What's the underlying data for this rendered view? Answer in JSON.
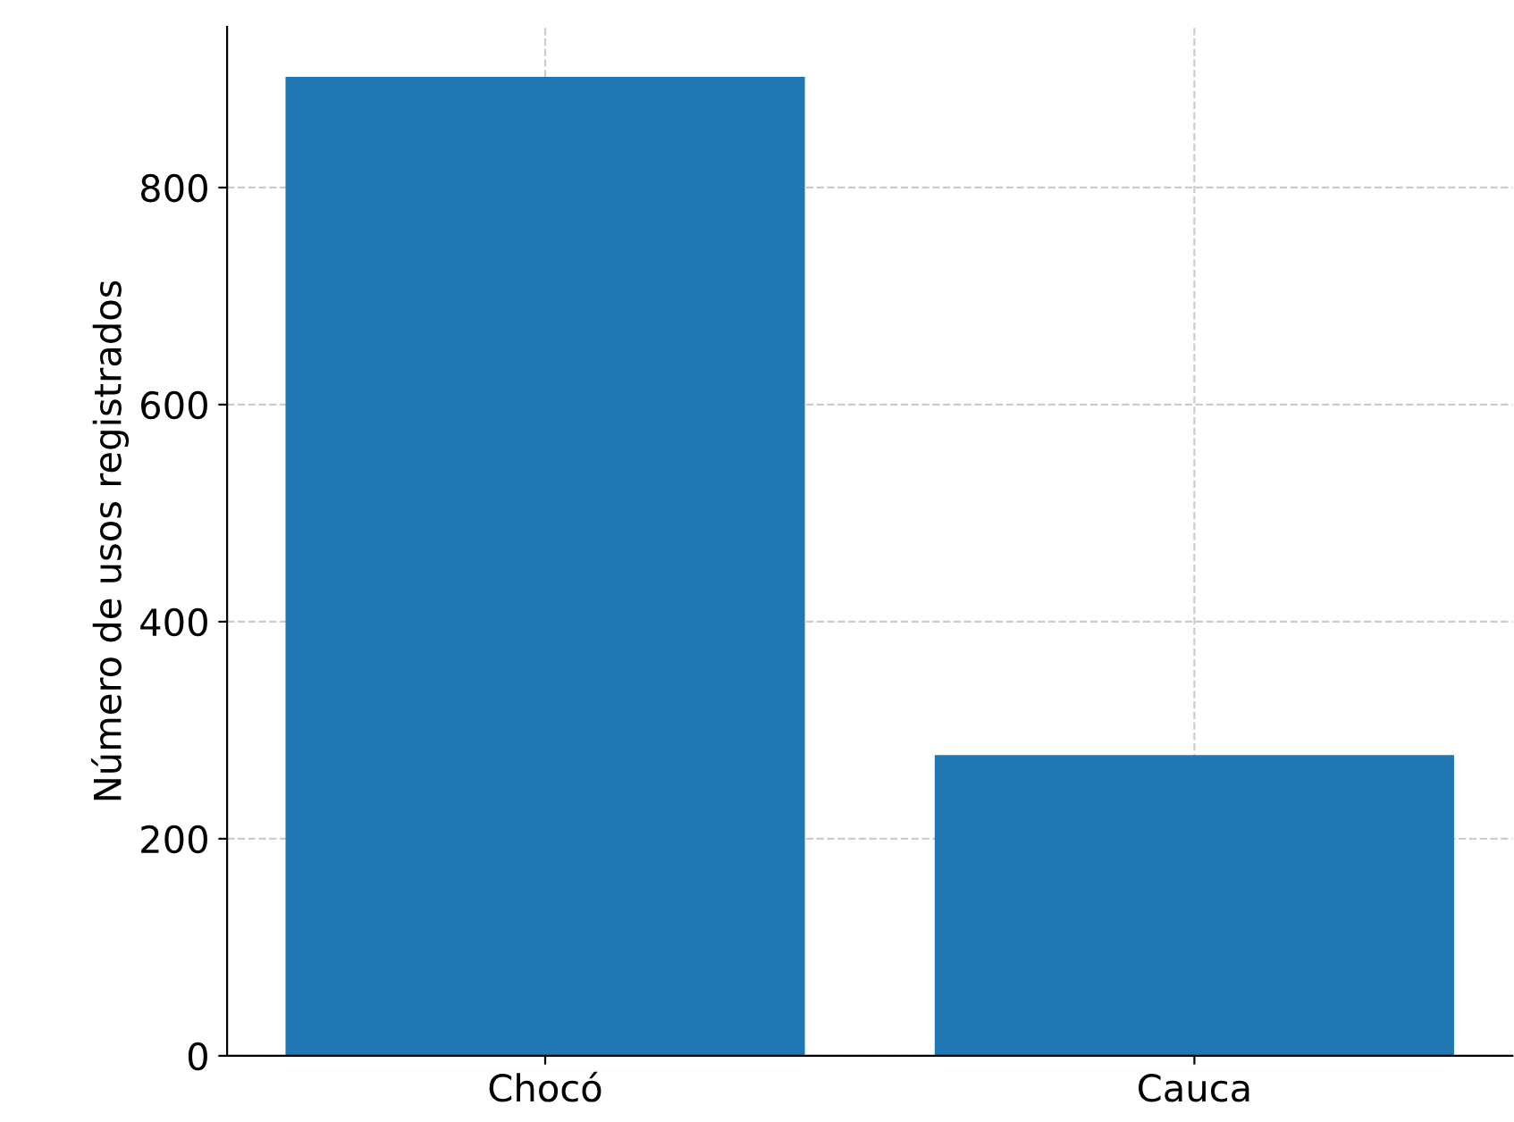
{
  "chart_data": {
    "type": "bar",
    "ylabel": "Número de usos registrados",
    "categories": [
      "Chocó",
      "Cauca"
    ],
    "values": [
      902,
      277
    ],
    "color": "#1f77b4",
    "ylim": [
      0,
      948
    ],
    "yticks": [
      0,
      200,
      400,
      600,
      800
    ],
    "grid": true
  }
}
